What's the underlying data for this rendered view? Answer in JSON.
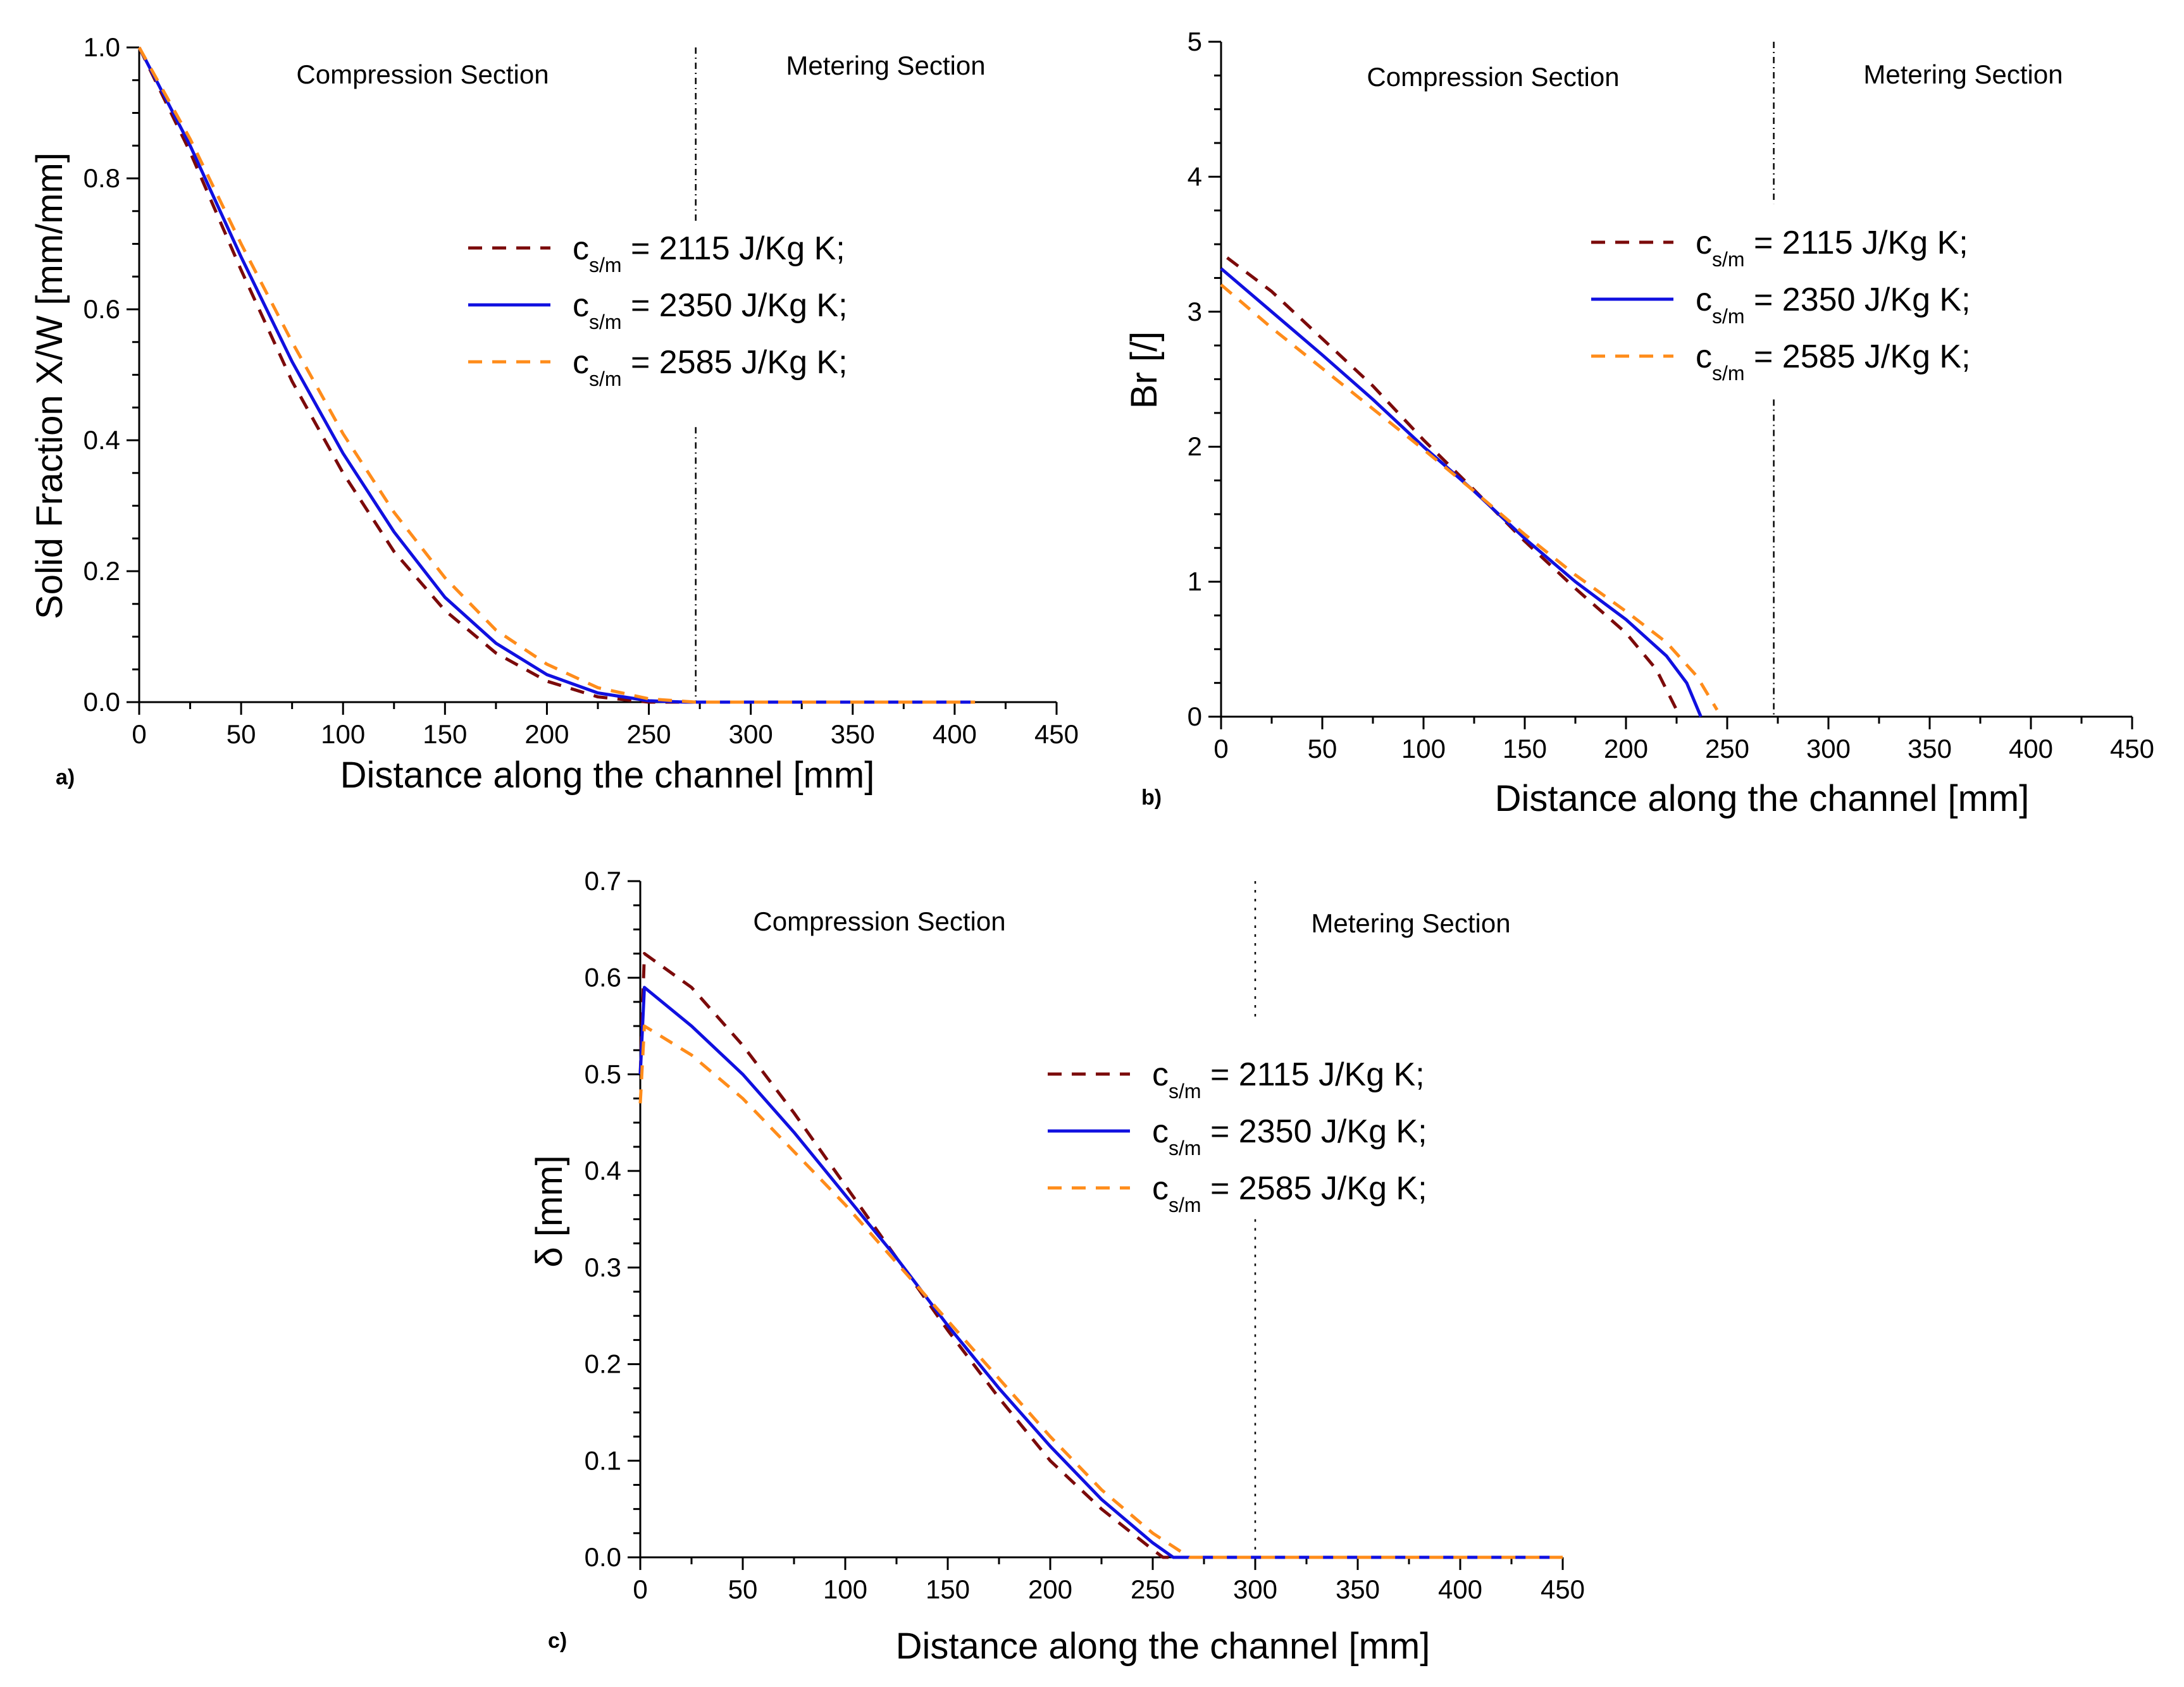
{
  "figure": {
    "panels": [
      "a)",
      "b)",
      "c)"
    ]
  },
  "series_styles": [
    {
      "name": "c_s/m = 2115 J/Kg K;",
      "color": "#7b0a0a",
      "dash": "22,16"
    },
    {
      "name": "c_s/m = 2350 J/Kg K;",
      "color": "#1010e0",
      "dash": ""
    },
    {
      "name": "c_s/m = 2585 J/Kg K;",
      "color": "#ff8c1a",
      "dash": "22,16"
    }
  ],
  "legend": {
    "entries": [
      {
        "main": "c",
        "sub": "s/m",
        "rest": " = 2115 J/Kg K;"
      },
      {
        "main": "c",
        "sub": "s/m",
        "rest": " = 2350 J/Kg K;"
      },
      {
        "main": "c",
        "sub": "s/m",
        "rest": " = 2585 J/Kg K;"
      }
    ]
  },
  "chart_data": [
    {
      "panel": "a)",
      "type": "line",
      "xlabel": "Distance along the channel [mm]",
      "ylabel": "Solid Fraction X/W [mm/mm]",
      "xlim": [
        0,
        450
      ],
      "ylim": [
        0,
        1.0
      ],
      "xticks": [
        0,
        50,
        100,
        150,
        200,
        250,
        300,
        350,
        400,
        450
      ],
      "yticks": [
        0.0,
        0.2,
        0.4,
        0.6,
        0.8,
        1.0
      ],
      "ytick_labels": [
        "0.0",
        "0.2",
        "0.4",
        "0.6",
        "0.8",
        "1.0"
      ],
      "section_divider_x": 273,
      "sections": [
        "Compression Section",
        "Metering Section"
      ],
      "series": [
        {
          "name": "c_s/m = 2115 J/Kg K;",
          "x": [
            0,
            25,
            50,
            75,
            100,
            125,
            150,
            175,
            200,
            225,
            250,
            262,
            300,
            350,
            410
          ],
          "y": [
            1.0,
            0.84,
            0.66,
            0.49,
            0.35,
            0.23,
            0.14,
            0.075,
            0.032,
            0.008,
            0.0,
            0.0,
            0.0,
            0.0,
            0.0
          ]
        },
        {
          "name": "c_s/m = 2350 J/Kg K;",
          "x": [
            0,
            25,
            50,
            75,
            100,
            125,
            150,
            175,
            200,
            225,
            250,
            268,
            300,
            350,
            410
          ],
          "y": [
            1.0,
            0.85,
            0.68,
            0.52,
            0.38,
            0.26,
            0.16,
            0.09,
            0.042,
            0.014,
            0.002,
            0.0,
            0.0,
            0.0,
            0.0
          ]
        },
        {
          "name": "c_s/m = 2585 J/Kg K;",
          "x": [
            0,
            25,
            50,
            75,
            100,
            125,
            150,
            175,
            200,
            225,
            250,
            273,
            300,
            350,
            410
          ],
          "y": [
            1.0,
            0.86,
            0.7,
            0.55,
            0.41,
            0.29,
            0.19,
            0.11,
            0.058,
            0.022,
            0.005,
            0.0,
            0.0,
            0.0,
            0.0
          ]
        }
      ]
    },
    {
      "panel": "b)",
      "type": "line",
      "xlabel": "Distance along the channel [mm]",
      "ylabel": "Br [/]",
      "xlim": [
        0,
        450
      ],
      "ylim": [
        0,
        5
      ],
      "xticks": [
        0,
        50,
        100,
        150,
        200,
        250,
        300,
        350,
        400,
        450
      ],
      "yticks": [
        0,
        1,
        2,
        3,
        4,
        5
      ],
      "ytick_labels": [
        "0",
        "1",
        "2",
        "3",
        "4",
        "5"
      ],
      "section_divider_x": 273,
      "sections": [
        "Compression Section",
        "Metering Section"
      ],
      "series": [
        {
          "name": "c_s/m = 2115 J/Kg K;",
          "x": [
            3,
            25,
            50,
            75,
            100,
            125,
            150,
            175,
            200,
            215,
            225
          ],
          "y": [
            3.4,
            3.15,
            2.8,
            2.45,
            2.05,
            1.68,
            1.3,
            0.95,
            0.62,
            0.35,
            0.05
          ]
        },
        {
          "name": "c_s/m = 2350 J/Kg K;",
          "x": [
            0,
            25,
            50,
            75,
            100,
            125,
            150,
            175,
            200,
            220,
            230,
            237
          ],
          "y": [
            3.32,
            3.0,
            2.68,
            2.35,
            2.0,
            1.67,
            1.32,
            1.0,
            0.72,
            0.45,
            0.25,
            0.0
          ]
        },
        {
          "name": "c_s/m = 2585 J/Kg K;",
          "x": [
            0,
            25,
            50,
            75,
            100,
            125,
            150,
            175,
            200,
            220,
            235,
            245
          ],
          "y": [
            3.2,
            2.88,
            2.58,
            2.28,
            1.98,
            1.67,
            1.35,
            1.05,
            0.78,
            0.55,
            0.3,
            0.05
          ]
        }
      ]
    },
    {
      "panel": "c)",
      "type": "line",
      "xlabel": "Distance along the channel [mm]",
      "ylabel": "δ [mm]",
      "xlim": [
        0,
        450
      ],
      "ylim": [
        0,
        0.7
      ],
      "xticks": [
        0,
        50,
        100,
        150,
        200,
        250,
        300,
        350,
        400,
        450
      ],
      "yticks": [
        0.0,
        0.1,
        0.2,
        0.3,
        0.4,
        0.5,
        0.6,
        0.7
      ],
      "ytick_labels": [
        "0.0",
        "0.1",
        "0.2",
        "0.3",
        "0.4",
        "0.5",
        "0.6",
        "0.7"
      ],
      "section_divider_x": 300,
      "sections": [
        "Compression Section",
        "Metering Section"
      ],
      "series": [
        {
          "name": "c_s/m = 2115 J/Kg K;",
          "x": [
            0,
            2,
            25,
            50,
            75,
            100,
            125,
            150,
            175,
            200,
            225,
            250,
            255,
            300,
            350,
            400,
            450
          ],
          "y": [
            0.5,
            0.625,
            0.59,
            0.53,
            0.46,
            0.385,
            0.31,
            0.235,
            0.165,
            0.1,
            0.05,
            0.008,
            0.0,
            0.0,
            0.0,
            0.0,
            0.0
          ]
        },
        {
          "name": "c_s/m = 2350 J/Kg K;",
          "x": [
            0,
            2,
            25,
            50,
            75,
            100,
            125,
            150,
            175,
            200,
            225,
            250,
            260,
            300,
            350,
            400,
            450
          ],
          "y": [
            0.5,
            0.59,
            0.55,
            0.5,
            0.44,
            0.375,
            0.31,
            0.24,
            0.175,
            0.115,
            0.06,
            0.015,
            0.0,
            0.0,
            0.0,
            0.0,
            0.0
          ]
        },
        {
          "name": "c_s/m = 2585 J/Kg K;",
          "x": [
            0,
            2,
            25,
            50,
            75,
            100,
            125,
            150,
            175,
            200,
            225,
            250,
            268,
            300,
            350,
            400,
            450
          ],
          "y": [
            0.47,
            0.55,
            0.52,
            0.475,
            0.42,
            0.365,
            0.305,
            0.245,
            0.185,
            0.125,
            0.07,
            0.025,
            0.0,
            0.0,
            0.0,
            0.0,
            0.0
          ]
        }
      ]
    }
  ]
}
